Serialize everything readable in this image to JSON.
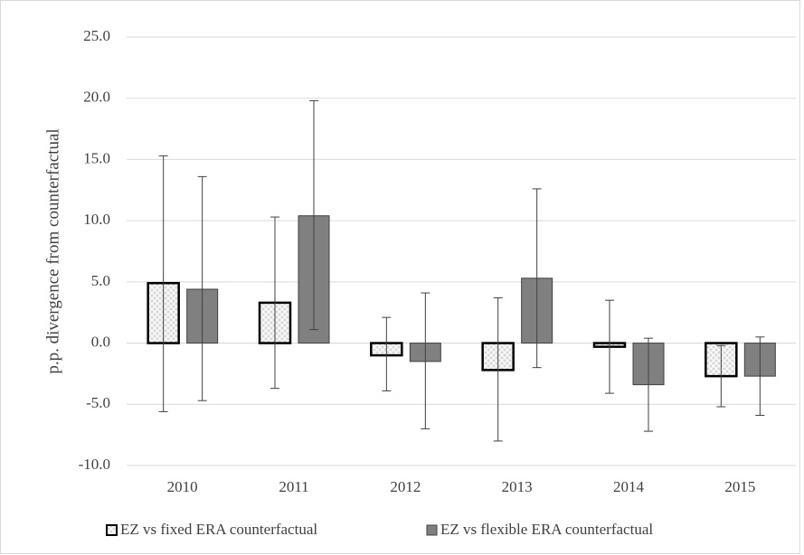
{
  "chart_data": {
    "type": "bar",
    "y_label": "p.p. divergence  from counterfactual",
    "categories": [
      "2010",
      "2011",
      "2012",
      "2013",
      "2014",
      "2015"
    ],
    "series": [
      {
        "name": "EZ vs fixed ERA counterfactual",
        "color": "#d9d9d9",
        "hatched": true,
        "values": [
          4.9,
          3.3,
          -1.0,
          -2.2,
          -0.3,
          -2.7
        ],
        "upper": [
          15.3,
          10.3,
          2.1,
          3.7,
          3.5,
          -0.2
        ],
        "lower": [
          -5.6,
          -3.7,
          -3.9,
          -8.0,
          -4.1,
          -5.2
        ]
      },
      {
        "name": "EZ vs flexible ERA counterfactual",
        "color": "#808080",
        "hatched": false,
        "values": [
          4.4,
          10.4,
          -1.5,
          5.3,
          -3.4,
          -2.7
        ],
        "upper": [
          13.6,
          19.8,
          4.1,
          12.6,
          0.4,
          0.5
        ],
        "lower": [
          -4.7,
          1.1,
          -7.0,
          -2.0,
          -7.2,
          -5.9
        ]
      }
    ],
    "ylim": [
      -10,
      25
    ],
    "yticks": [
      {
        "value": -10,
        "label": "-10.0"
      },
      {
        "value": -5,
        "label": "-5.0"
      },
      {
        "value": 0,
        "label": "0.0"
      },
      {
        "value": 5,
        "label": "5.0"
      },
      {
        "value": 10,
        "label": "10.0"
      },
      {
        "value": 15,
        "label": "15.0"
      },
      {
        "value": 20,
        "label": "20.0"
      },
      {
        "value": 25,
        "label": "25.0"
      }
    ],
    "grid": true,
    "legend": "bottom"
  }
}
